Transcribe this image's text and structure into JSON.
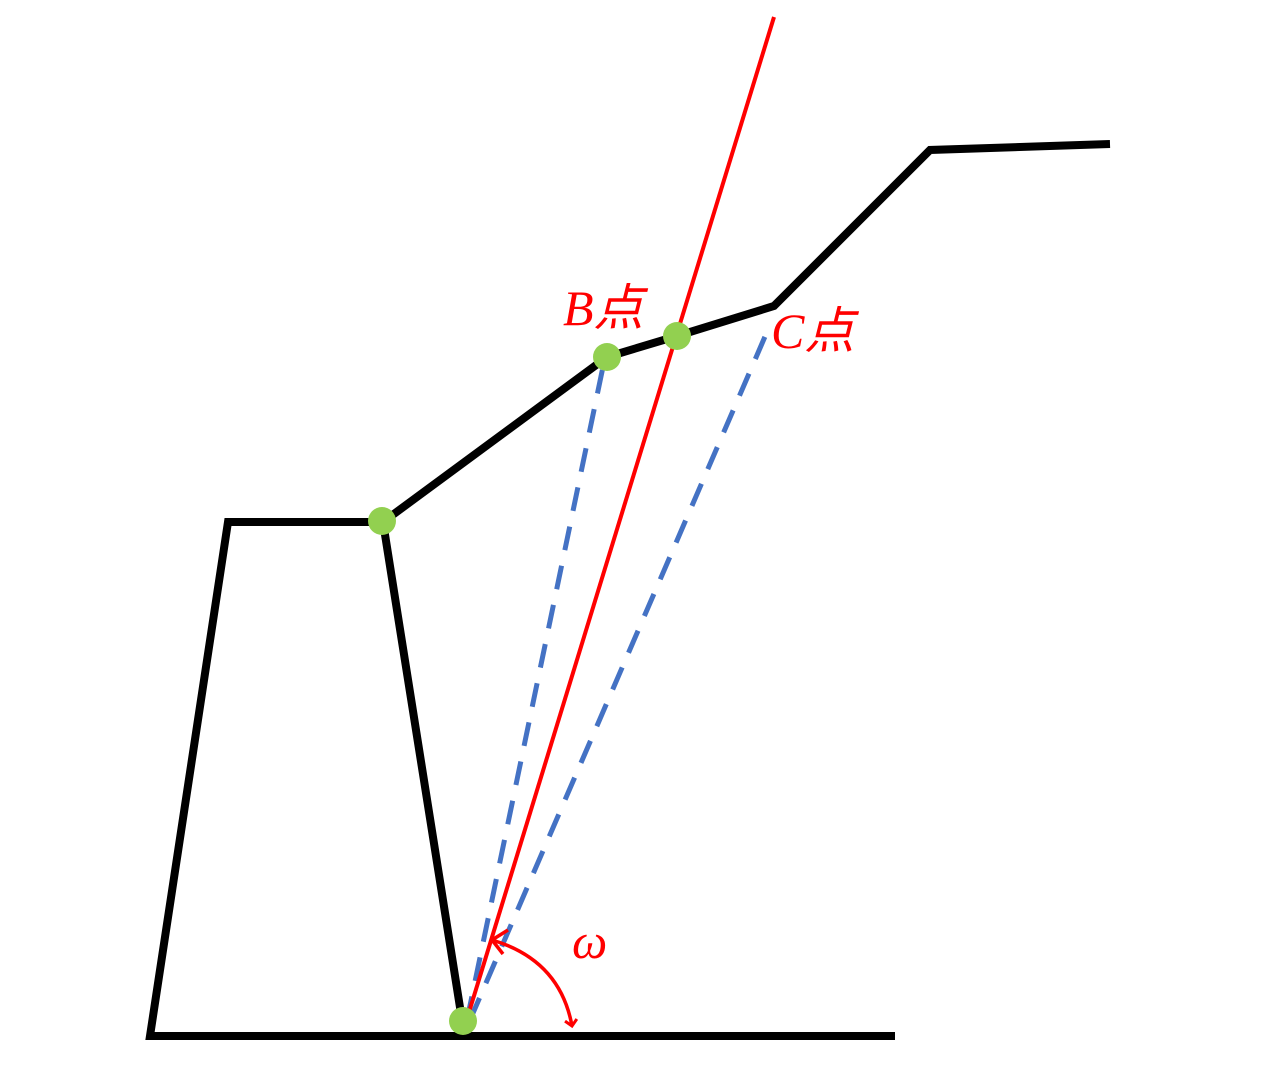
{
  "labels": {
    "point_b": "B点",
    "point_c": "C点",
    "angle": "ω"
  },
  "colors": {
    "wall_outline": "#000000",
    "red_line": "#ff0000",
    "dashed_lines": "#4472c4",
    "points": "#92d050",
    "label_text": "#ff0000"
  }
}
